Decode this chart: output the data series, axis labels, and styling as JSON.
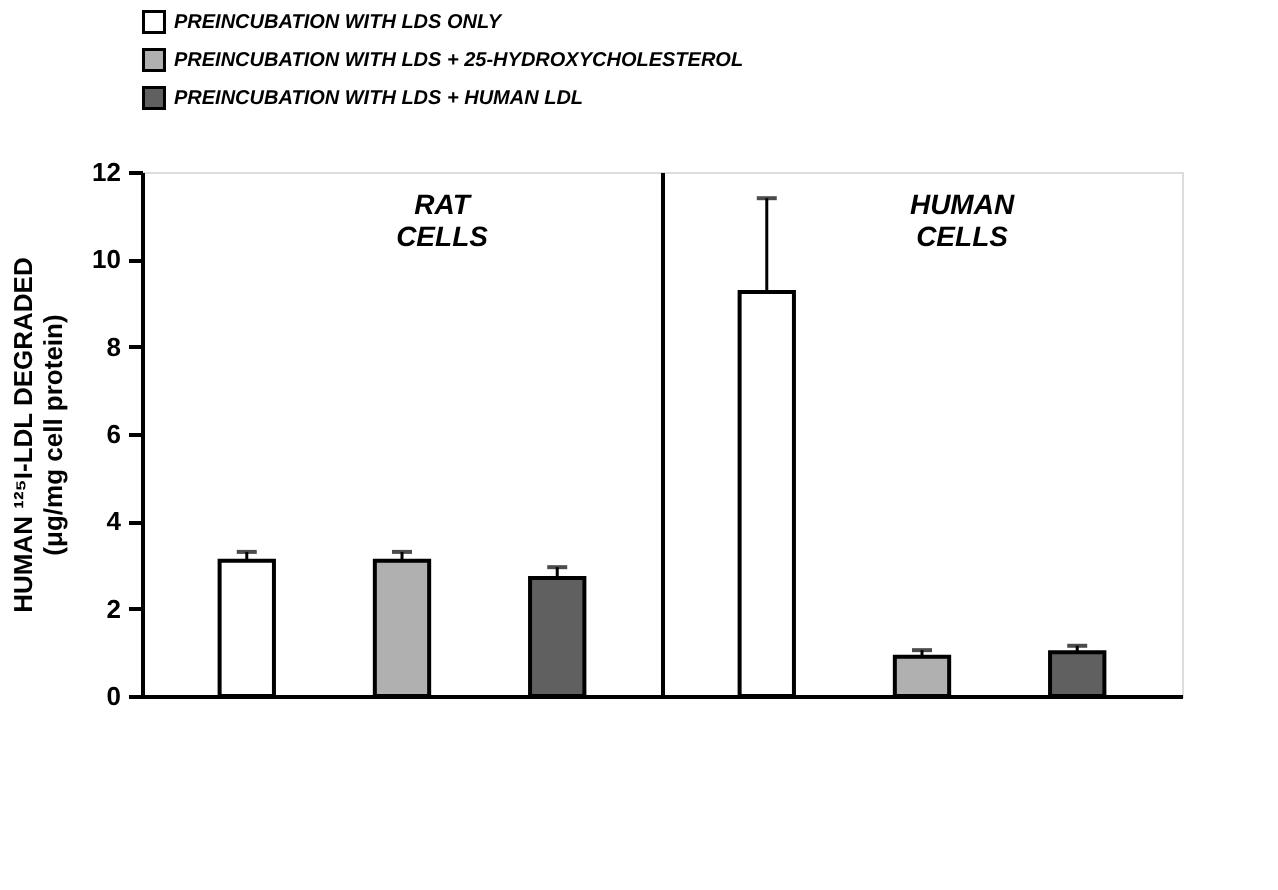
{
  "chart_data": {
    "type": "bar",
    "ylabel": "HUMAN ¹²⁵I-LDL DEGRADED\n(μg/mg cell protein)",
    "categories": [
      null,
      null
    ],
    "annotations": [
      "RAT CELLS",
      "HUMAN CELLS"
    ],
    "legend": "top",
    "tick_labels": "y",
    "grid": "x",
    "ylim": [
      0,
      12
    ],
    "yticks": [
      0,
      2,
      4,
      6,
      8,
      10,
      12
    ],
    "series": [
      {
        "name": "PREINCUBATION WITH LDS ONLY",
        "color": "#ffffff",
        "values": [
          3.1,
          9.25
        ],
        "errors": [
          [
            3.1,
            3.3
          ],
          [
            9.25,
            11.4
          ]
        ]
      },
      {
        "name": "PREINCUBATION WITH LDS + 25-HYDROXYCHOLESTEROL",
        "color": "#b0b0b0",
        "values": [
          3.1,
          0.9
        ],
        "errors": [
          [
            3.1,
            3.3
          ],
          [
            0.9,
            1.05
          ]
        ]
      },
      {
        "name": "PREINCUBATION WITH LDS + HUMAN LDL",
        "color": "#606060",
        "values": [
          2.7,
          1.0
        ],
        "errors": [
          [
            2.7,
            2.95
          ],
          [
            1.0,
            1.15
          ]
        ]
      }
    ]
  }
}
